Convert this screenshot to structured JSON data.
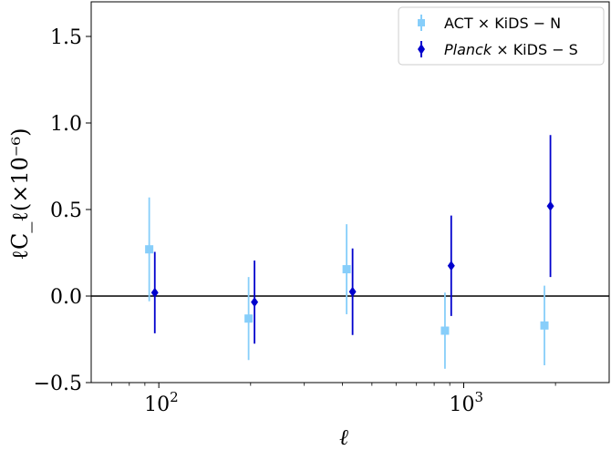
{
  "chart_data": {
    "type": "scatter",
    "x_scale": "log",
    "xlim": [
      60,
      3000
    ],
    "ylim": [
      -0.5,
      1.7
    ],
    "xlabel": "ℓ",
    "ylabel": "ℓC_ℓ(×10⁻⁶)",
    "x_ticks": [
      {
        "value": 100,
        "base": "10",
        "exp": "2"
      },
      {
        "value": 1000,
        "base": "10",
        "exp": "3"
      }
    ],
    "y_ticks": [
      {
        "value": -0.5,
        "label": "−0.5"
      },
      {
        "value": 0.0,
        "label": "0.0"
      },
      {
        "value": 0.5,
        "label": "0.5"
      },
      {
        "value": 1.0,
        "label": "1.0"
      },
      {
        "value": 1.5,
        "label": "1.5"
      }
    ],
    "zero_line": 0,
    "legend_position": "top-right",
    "series": [
      {
        "name": "ACT × KiDS − N",
        "color": "#87cefa",
        "marker": "square",
        "points": [
          {
            "x": 93,
            "y": 0.27,
            "yerr": 0.3
          },
          {
            "x": 197,
            "y": -0.13,
            "yerr": 0.24
          },
          {
            "x": 413,
            "y": 0.155,
            "yerr": 0.26
          },
          {
            "x": 868,
            "y": -0.2,
            "yerr": 0.22
          },
          {
            "x": 1840,
            "y": -0.17,
            "yerr": 0.23
          }
        ]
      },
      {
        "name": "Planck × KiDS − S",
        "name_italic": "Planck",
        "name_rest": " × KiDS − S",
        "color": "#0000cd",
        "marker": "diamond",
        "points": [
          {
            "x": 97,
            "y": 0.02,
            "yerr": 0.235
          },
          {
            "x": 206,
            "y": -0.035,
            "yerr": 0.24
          },
          {
            "x": 432,
            "y": 0.025,
            "yerr": 0.25
          },
          {
            "x": 910,
            "y": 0.175,
            "yerr": 0.29
          },
          {
            "x": 1925,
            "y": 0.52,
            "yerr": 0.41
          }
        ]
      }
    ]
  }
}
